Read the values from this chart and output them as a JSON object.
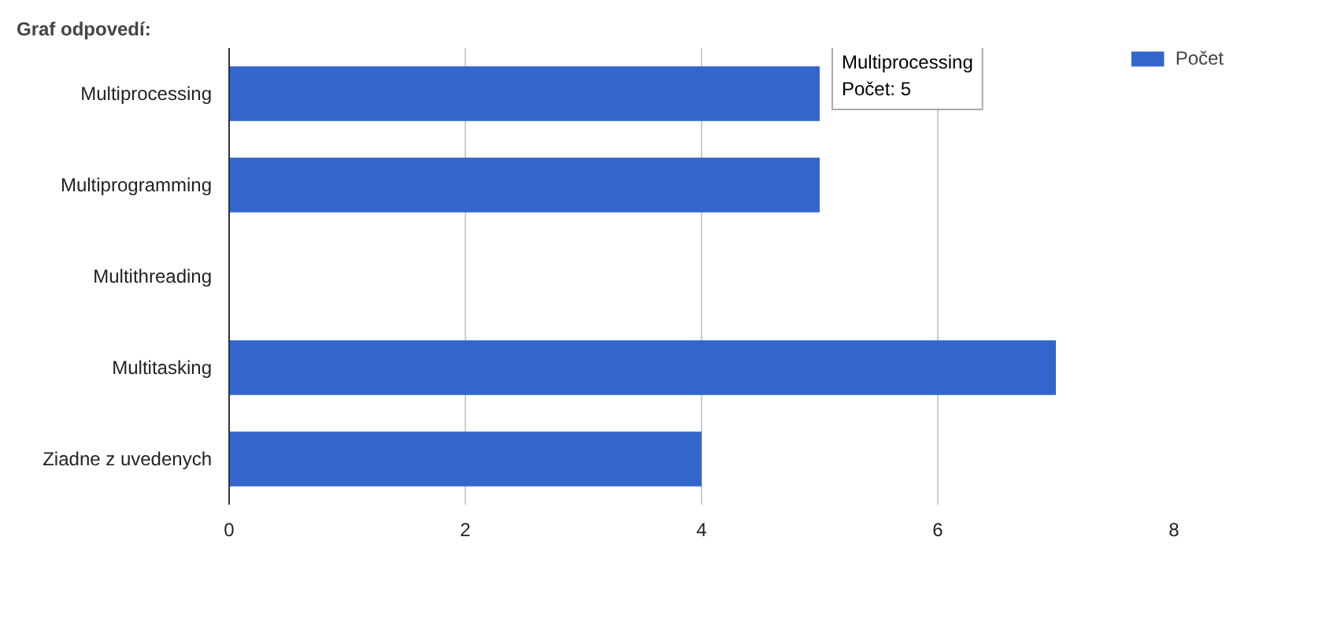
{
  "chart_data": {
    "type": "bar",
    "orientation": "horizontal",
    "title": "Graf odpovedí:",
    "categories": [
      "Multiprocessing",
      "Multiprogramming",
      "Multithreading",
      "Multitasking",
      "Ziadne z uvedenych"
    ],
    "series": [
      {
        "name": "Počet",
        "color": "#3366cc",
        "values": [
          5,
          5,
          0,
          7,
          4
        ]
      }
    ],
    "xlim": [
      0,
      8
    ],
    "xticks": [
      0,
      2,
      4,
      6,
      8
    ],
    "grid": "x",
    "legend": "top right",
    "annotations": [
      {
        "text": "Multiprocessing\nPočet: 5",
        "x": 5,
        "y": "Multiprocessing"
      }
    ]
  }
}
